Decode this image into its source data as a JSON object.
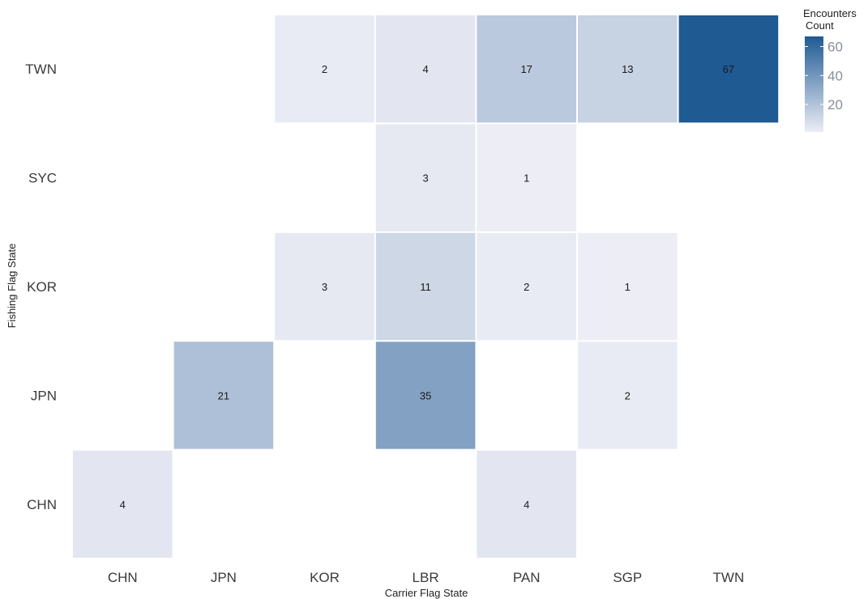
{
  "chart_data": {
    "type": "heatmap",
    "title": "",
    "xlabel": "Carrier Flag State",
    "ylabel": "Fishing Flag State",
    "x_categories": [
      "CHN",
      "JPN",
      "KOR",
      "LBR",
      "PAN",
      "SGP",
      "TWN"
    ],
    "y_categories": [
      "TWN",
      "SYC",
      "KOR",
      "JPN",
      "CHN"
    ],
    "cells": [
      {
        "x": "KOR",
        "y": "TWN",
        "value": 2
      },
      {
        "x": "LBR",
        "y": "TWN",
        "value": 4
      },
      {
        "x": "PAN",
        "y": "TWN",
        "value": 17
      },
      {
        "x": "SGP",
        "y": "TWN",
        "value": 13
      },
      {
        "x": "TWN",
        "y": "TWN",
        "value": 67
      },
      {
        "x": "LBR",
        "y": "SYC",
        "value": 3
      },
      {
        "x": "PAN",
        "y": "SYC",
        "value": 1
      },
      {
        "x": "KOR",
        "y": "KOR",
        "value": 3
      },
      {
        "x": "LBR",
        "y": "KOR",
        "value": 11
      },
      {
        "x": "PAN",
        "y": "KOR",
        "value": 2
      },
      {
        "x": "SGP",
        "y": "KOR",
        "value": 1
      },
      {
        "x": "JPN",
        "y": "JPN",
        "value": 21
      },
      {
        "x": "LBR",
        "y": "JPN",
        "value": 35
      },
      {
        "x": "SGP",
        "y": "JPN",
        "value": 2
      },
      {
        "x": "CHN",
        "y": "CHN",
        "value": 4
      },
      {
        "x": "PAN",
        "y": "CHN",
        "value": 4
      }
    ],
    "legend": {
      "title_line1": "Encounters",
      "title_line2": "Count",
      "ticks": [
        20,
        40,
        60
      ],
      "range": [
        1,
        67
      ],
      "placement": "top-right"
    },
    "color_low": "#ecedf5",
    "color_high": "#1f5a93",
    "grid": false
  }
}
